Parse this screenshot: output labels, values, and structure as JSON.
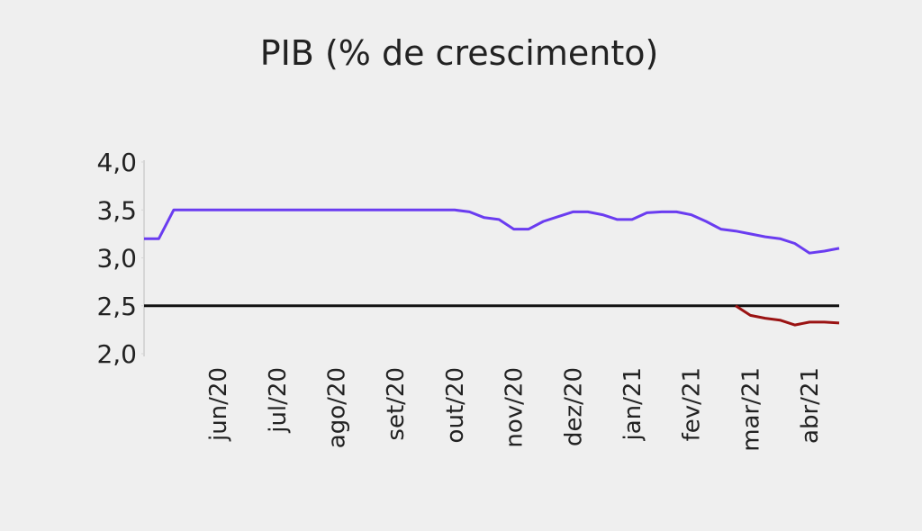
{
  "chart_data": {
    "type": "line",
    "title": "PIB (% de crescimento)",
    "categories": [
      null,
      null,
      null,
      null,
      null,
      "jun/20",
      null,
      null,
      null,
      "jul/20",
      null,
      null,
      null,
      "ago/20",
      null,
      null,
      null,
      "set/20",
      null,
      null,
      null,
      "out/20",
      null,
      null,
      null,
      "nov/20",
      null,
      null,
      null,
      "dez/20",
      null,
      null,
      null,
      "jan/21",
      null,
      null,
      null,
      "fev/21",
      null,
      null,
      null,
      "mar/21",
      null,
      null,
      null,
      "abr/21",
      null,
      null
    ],
    "series": [
      {
        "color": "#6a3cf0",
        "values": [
          3.2,
          3.2,
          3.5,
          3.5,
          3.5,
          3.5,
          3.5,
          3.5,
          3.5,
          3.5,
          3.5,
          3.5,
          3.5,
          3.5,
          3.5,
          3.5,
          3.5,
          3.5,
          3.5,
          3.5,
          3.5,
          3.5,
          3.48,
          3.42,
          3.4,
          3.3,
          3.3,
          3.38,
          3.43,
          3.48,
          3.48,
          3.45,
          3.4,
          3.4,
          3.47,
          3.48,
          3.48,
          3.45,
          3.38,
          3.3,
          3.28,
          3.25,
          3.22,
          3.2,
          3.15,
          3.05,
          3.07,
          3.1
        ]
      },
      {
        "color": "#9a1212",
        "values": [
          null,
          null,
          null,
          null,
          null,
          null,
          null,
          null,
          null,
          null,
          null,
          null,
          null,
          null,
          null,
          null,
          null,
          null,
          null,
          null,
          null,
          null,
          null,
          null,
          null,
          null,
          null,
          null,
          null,
          null,
          null,
          null,
          null,
          null,
          null,
          null,
          null,
          null,
          null,
          null,
          2.5,
          2.4,
          2.37,
          2.35,
          2.3,
          2.33,
          2.33,
          2.32
        ]
      }
    ],
    "hline": {
      "value": 2.5,
      "color": "#111111"
    },
    "ylim": [
      2.0,
      4.0
    ],
    "yticks": [
      {
        "value": 2.0,
        "label": "2,0"
      },
      {
        "value": 2.5,
        "label": "2,5"
      },
      {
        "value": 3.0,
        "label": "3,0"
      },
      {
        "value": 3.5,
        "label": "3,5"
      },
      {
        "value": 4.0,
        "label": "4,0"
      }
    ],
    "grid": false
  }
}
